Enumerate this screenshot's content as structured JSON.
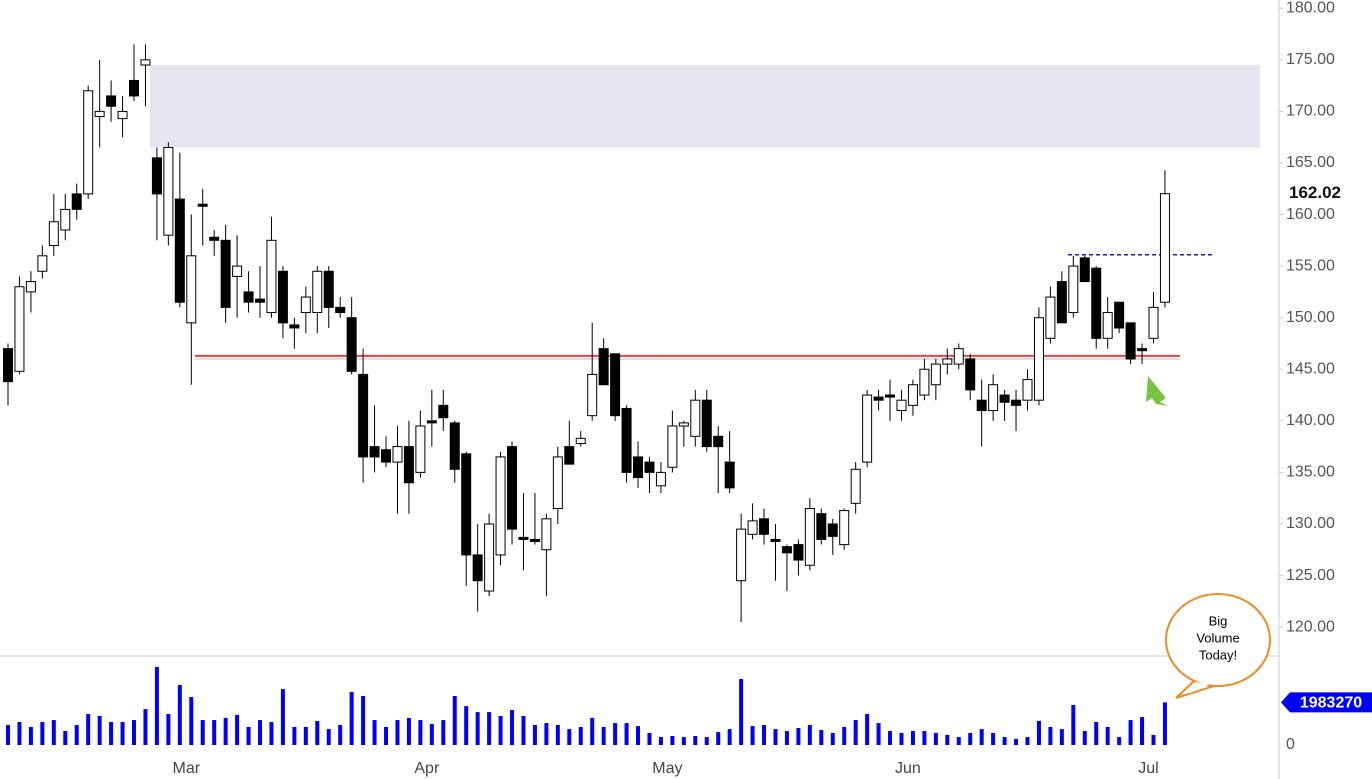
{
  "chart_data": {
    "type": "candlestick",
    "categories": [
      null,
      null,
      null,
      null,
      null,
      null,
      null,
      null,
      null,
      null,
      null,
      null,
      null,
      null,
      null,
      null,
      "Mar",
      null,
      null,
      null,
      null,
      null,
      null,
      null,
      null,
      null,
      null,
      null,
      null,
      null,
      null,
      null,
      null,
      null,
      null,
      null,
      null,
      "Apr",
      null,
      null,
      null,
      null,
      null,
      null,
      null,
      null,
      null,
      null,
      null,
      null,
      null,
      null,
      null,
      null,
      null,
      null,
      null,
      null,
      "May",
      null,
      null,
      null,
      null,
      null,
      null,
      null,
      null,
      null,
      null,
      null,
      null,
      null,
      null,
      null,
      null,
      null,
      null,
      null,
      null,
      "Jun",
      null,
      null,
      null,
      null,
      null,
      null,
      null,
      null,
      null,
      null,
      null,
      null,
      null,
      null,
      null,
      null,
      null,
      null,
      null,
      null,
      "Jul",
      null
    ],
    "open": [
      147.0,
      144.8,
      152.5,
      154.5,
      157.0,
      158.5,
      162.0,
      162.0,
      169.5,
      171.5,
      169.3,
      173.0,
      174.5,
      165.5,
      158.0,
      161.5,
      149.5,
      161.0,
      157.8,
      157.5,
      154.0,
      152.5,
      151.8,
      150.5,
      154.5,
      149.3,
      150.5,
      150.5,
      154.5,
      151.0,
      150.0,
      144.5,
      137.5,
      137.2,
      136.0,
      137.5,
      135.0,
      140.0,
      141.5,
      139.8,
      136.8,
      127.0,
      123.5,
      127.0,
      137.5,
      128.7,
      128.5,
      127.5,
      131.5,
      137.5,
      137.8,
      140.5,
      147.0,
      146.5,
      141.2,
      136.5,
      136.0,
      133.7,
      135.5,
      139.5,
      138.5,
      142.0,
      138.5,
      136.0,
      124.5,
      129.0,
      130.5,
      128.5,
      127.8,
      128.0,
      126.0,
      131.0,
      130.0,
      128.0,
      132.0,
      136.0,
      142.3,
      142.5,
      141.0,
      141.5,
      142.5,
      143.5,
      145.5,
      145.5,
      146.0,
      142.0,
      141.0,
      142.5,
      142.0,
      142.0,
      142.0,
      148.0,
      153.5,
      150.5,
      155.8,
      154.8,
      148.0,
      151.5,
      149.5,
      147.0,
      148.0,
      151.5
    ],
    "high": [
      147.5,
      154.0,
      154.5,
      157.0,
      162.0,
      162.0,
      163.0,
      172.5,
      175.0,
      173.0,
      171.5,
      176.5,
      176.5,
      166.5,
      167.0,
      166.0,
      160.0,
      162.5,
      158.5,
      159.0,
      158.0,
      154.5,
      155.0,
      159.8,
      155.0,
      150.0,
      153.0,
      155.0,
      155.0,
      152.0,
      152.0,
      147.0,
      141.5,
      138.5,
      139.5,
      140.0,
      141.0,
      143.0,
      143.0,
      140.0,
      137.0,
      130.0,
      131.0,
      137.0,
      138.0,
      133.0,
      133.0,
      131.0,
      137.5,
      140.0,
      139.0,
      149.5,
      148.0,
      146.5,
      141.5,
      138.0,
      136.5,
      136.0,
      141.0,
      140.0,
      143.0,
      143.0,
      139.5,
      139.0,
      131.0,
      132.0,
      131.5,
      130.0,
      128.0,
      128.5,
      132.5,
      131.5,
      130.5,
      131.5,
      136.0,
      143.0,
      143.0,
      144.0,
      143.0,
      144.0,
      146.0,
      146.0,
      147.0,
      147.5,
      146.5,
      144.0,
      144.5,
      143.0,
      143.0,
      145.0,
      151.0,
      153.0,
      154.5,
      156.0,
      156.0,
      155.0,
      152.0,
      151.5,
      149.5,
      147.5,
      152.5,
      164.3
    ],
    "low": [
      141.5,
      144.5,
      150.5,
      153.8,
      156.0,
      157.5,
      159.5,
      161.5,
      166.5,
      169.0,
      167.5,
      171.0,
      170.5,
      157.5,
      157.0,
      151.0,
      143.5,
      157.0,
      156.0,
      149.5,
      150.0,
      150.5,
      150.0,
      150.0,
      148.0,
      147.0,
      148.5,
      148.5,
      149.0,
      150.0,
      144.5,
      134.0,
      135.0,
      135.5,
      131.0,
      131.0,
      134.5,
      137.5,
      139.0,
      134.0,
      124.0,
      121.5,
      123.0,
      126.0,
      128.0,
      125.5,
      128.0,
      123.0,
      130.0,
      136.0,
      137.5,
      140.0,
      143.5,
      140.0,
      134.0,
      133.5,
      133.0,
      133.0,
      135.0,
      137.5,
      137.5,
      137.0,
      133.0,
      133.0,
      120.5,
      128.5,
      128.0,
      124.5,
      123.5,
      125.0,
      125.5,
      128.0,
      127.0,
      127.5,
      131.0,
      135.5,
      141.0,
      140.0,
      140.0,
      140.5,
      142.0,
      142.0,
      144.5,
      145.0,
      142.0,
      137.5,
      140.0,
      140.0,
      139.0,
      141.0,
      141.5,
      147.5,
      149.5,
      150.0,
      153.5,
      147.0,
      147.0,
      148.5,
      145.5,
      145.5,
      147.5,
      151.0
    ],
    "close": [
      143.8,
      153.0,
      153.5,
      156.0,
      159.3,
      160.5,
      160.5,
      172.0,
      170.0,
      170.5,
      170.0,
      171.5,
      175.0,
      162.0,
      166.5,
      151.5,
      156.0,
      160.8,
      157.5,
      151.0,
      155.0,
      151.5,
      151.5,
      157.5,
      149.5,
      149.0,
      152.0,
      154.5,
      151.0,
      150.5,
      144.8,
      136.5,
      136.5,
      136.0,
      137.5,
      134.0,
      139.5,
      139.8,
      140.3,
      135.3,
      127.0,
      124.5,
      130.0,
      136.5,
      129.5,
      128.5,
      128.3,
      130.5,
      136.5,
      135.8,
      138.3,
      144.5,
      143.5,
      140.5,
      135.0,
      134.5,
      135.0,
      135.0,
      139.5,
      139.8,
      142.0,
      137.5,
      137.5,
      133.5,
      129.5,
      130.3,
      129.0,
      128.3,
      127.2,
      126.5,
      131.5,
      128.5,
      128.8,
      131.3,
      135.3,
      142.5,
      142.0,
      142.3,
      142.0,
      143.5,
      145.0,
      145.5,
      146.0,
      147.0,
      143.0,
      141.0,
      143.5,
      141.8,
      141.5,
      144.0,
      150.0,
      152.0,
      149.5,
      155.0,
      153.5,
      148.0,
      150.5,
      149.0,
      146.0,
      146.8,
      151.0,
      162.02
    ],
    "up_color": "#ffffff",
    "down_color": "#000000",
    "ylim": [
      117.2,
      180.8
    ],
    "yticks": [
      {
        "value": 120,
        "label": "120.00"
      },
      {
        "value": 125,
        "label": "125.00"
      },
      {
        "value": 130,
        "label": "130.00"
      },
      {
        "value": 135,
        "label": "135.00"
      },
      {
        "value": 140,
        "label": "140.00"
      },
      {
        "value": 145,
        "label": "145.00"
      },
      {
        "value": 150,
        "label": "150.00"
      },
      {
        "value": 155,
        "label": "155.00"
      },
      {
        "value": 160,
        "label": "160.00"
      },
      {
        "value": 165,
        "label": "165.00"
      },
      {
        "value": 170,
        "label": "170.00"
      },
      {
        "value": 175,
        "label": "175.00"
      },
      {
        "value": 180,
        "label": "180.00"
      }
    ],
    "grid": false,
    "resistance_zone": [
      166.5,
      174.5
    ],
    "support_line": 146.3,
    "breakout_line": 156.1,
    "callout": [
      "Big",
      "Volume",
      "Today!"
    ],
    "volume": {
      "color": "#0000ff",
      "ylim": [
        0,
        4000000
      ],
      "yticks": [
        0
      ],
      "values": [
        930000,
        1070000,
        840000,
        1070000,
        1160000,
        650000,
        930000,
        1440000,
        1350000,
        1070000,
        1070000,
        1160000,
        1670000,
        3630000,
        1440000,
        2790000,
        2230000,
        1160000,
        1160000,
        1260000,
        1400000,
        840000,
        1160000,
        1070000,
        2600000,
        840000,
        840000,
        1120000,
        740000,
        930000,
        2470000,
        2280000,
        1160000,
        840000,
        1160000,
        1260000,
        1160000,
        980000,
        1160000,
        2280000,
        1810000,
        1530000,
        1530000,
        1350000,
        1630000,
        1350000,
        930000,
        1020000,
        930000,
        740000,
        840000,
        1260000,
        840000,
        1020000,
        1020000,
        880000,
        560000,
        370000,
        420000,
        370000,
        420000,
        370000,
        600000,
        740000,
        3070000,
        880000,
        930000,
        740000,
        650000,
        790000,
        930000,
        700000,
        560000,
        840000,
        1160000,
        1440000,
        1020000,
        650000,
        560000,
        650000,
        650000,
        560000,
        470000,
        370000,
        560000,
        740000,
        560000,
        370000,
        280000,
        370000,
        1120000,
        840000,
        740000,
        1860000,
        650000,
        1070000,
        840000,
        370000,
        1160000,
        1300000,
        470000,
        1983270
      ]
    }
  }
}
